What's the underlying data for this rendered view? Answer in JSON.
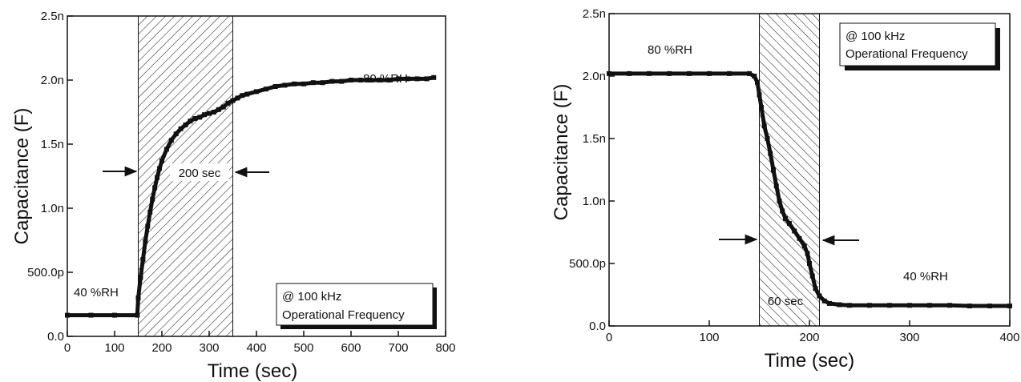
{
  "chart_data": [
    {
      "type": "scatter",
      "title": "",
      "xlabel": "Time (sec)",
      "ylabel": "Capacitance (F)",
      "xlim": [
        0,
        800
      ],
      "ylim": [
        0,
        2.5e-09
      ],
      "xticks": [
        0,
        100,
        200,
        300,
        400,
        500,
        600,
        700,
        800
      ],
      "xtick_labels": [
        "0",
        "100",
        "200",
        "300",
        "400",
        "500",
        "600",
        "700",
        "800"
      ],
      "yticks": [
        0,
        5e-10,
        1e-09,
        1.5e-09,
        2e-09,
        2.5e-09
      ],
      "ytick_labels": [
        "0.0",
        "500.0p",
        "1.0n",
        "1.5n",
        "2.0n",
        "2.5n"
      ],
      "shaded_region": [
        150,
        350
      ],
      "series": [
        {
          "x": [
            0,
            50,
            100,
            148,
            150,
            155,
            160,
            165,
            170,
            175,
            180,
            185,
            190,
            195,
            200,
            210,
            220,
            230,
            240,
            250,
            260,
            270,
            280,
            290,
            300,
            310,
            320,
            330,
            340,
            350,
            360,
            370,
            380,
            400,
            420,
            440,
            460,
            480,
            500,
            520,
            540,
            560,
            580,
            600,
            620,
            640,
            660,
            680,
            700,
            720,
            740,
            760,
            775
          ],
          "y": [
            1.65e-10,
            1.65e-10,
            1.65e-10,
            1.65e-10,
            3e-10,
            4.6e-10,
            6e-10,
            7.4e-10,
            8.6e-10,
            9.7e-10,
            1.07e-09,
            1.16e-09,
            1.24e-09,
            1.31e-09,
            1.37e-09,
            1.46e-09,
            1.53e-09,
            1.58e-09,
            1.62e-09,
            1.65e-09,
            1.68e-09,
            1.7e-09,
            1.71e-09,
            1.73e-09,
            1.74e-09,
            1.75e-09,
            1.77e-09,
            1.79e-09,
            1.82e-09,
            1.84e-09,
            1.86e-09,
            1.88e-09,
            1.89e-09,
            1.91e-09,
            1.93e-09,
            1.95e-09,
            1.96e-09,
            1.97e-09,
            1.97e-09,
            1.98e-09,
            1.98e-09,
            1.99e-09,
            1.99e-09,
            2e-09,
            2e-09,
            2e-09,
            2e-09,
            2e-09,
            2.01e-09,
            2.01e-09,
            2.01e-09,
            2.01e-09,
            2.02e-09
          ]
        }
      ],
      "annotations": {
        "low_rh": "40 %RH",
        "high_rh": "80 %RH",
        "duration": "200 sec",
        "box_line1": "@ 100 kHz",
        "box_line2": "Operational Frequency"
      }
    },
    {
      "type": "scatter",
      "title": "",
      "xlabel": "Time (sec)",
      "ylabel": "Capacitance (F)",
      "xlim": [
        0,
        400
      ],
      "ylim": [
        0,
        2.5e-09
      ],
      "xticks": [
        0,
        100,
        200,
        300,
        400
      ],
      "xtick_labels": [
        "0",
        "100",
        "200",
        "300",
        "400"
      ],
      "yticks": [
        0,
        5e-10,
        1e-09,
        1.5e-09,
        2e-09,
        2.5e-09
      ],
      "ytick_labels": [
        "0.0",
        "500.0p",
        "1.0n",
        "1.5n",
        "2.0n",
        "2.5n"
      ],
      "shaded_region": [
        150,
        210
      ],
      "series": [
        {
          "x": [
            0,
            20,
            40,
            60,
            80,
            100,
            120,
            140,
            145,
            148,
            150,
            152,
            155,
            158,
            161,
            164,
            167,
            170,
            173,
            176,
            180,
            185,
            190,
            195,
            198,
            200,
            203,
            206,
            210,
            215,
            220,
            230,
            240,
            260,
            280,
            300,
            320,
            340,
            360,
            380,
            400
          ],
          "y": [
            2.02e-09,
            2.02e-09,
            2.02e-09,
            2.02e-09,
            2.02e-09,
            2.02e-09,
            2.02e-09,
            2.02e-09,
            2e-09,
            1.95e-09,
            1.85e-09,
            1.75e-09,
            1.6e-09,
            1.5e-09,
            1.38e-09,
            1.25e-09,
            1.12e-09,
            1e-09,
            9.2e-10,
            8.6e-10,
            8.2e-10,
            7.6e-10,
            7e-10,
            6.4e-10,
            5.8e-10,
            5e-10,
            4e-10,
            3e-10,
            2.4e-10,
            2e-10,
            1.8e-10,
            1.7e-10,
            1.65e-10,
            1.65e-10,
            1.65e-10,
            1.65e-10,
            1.65e-10,
            1.65e-10,
            1.6e-10,
            1.6e-10,
            1.6e-10
          ]
        }
      ],
      "annotations": {
        "low_rh": "40 %RH",
        "high_rh": "80 %RH",
        "duration": "60 sec",
        "box_line1": "@ 100 kHz",
        "box_line2": "Operational Frequency"
      }
    }
  ]
}
